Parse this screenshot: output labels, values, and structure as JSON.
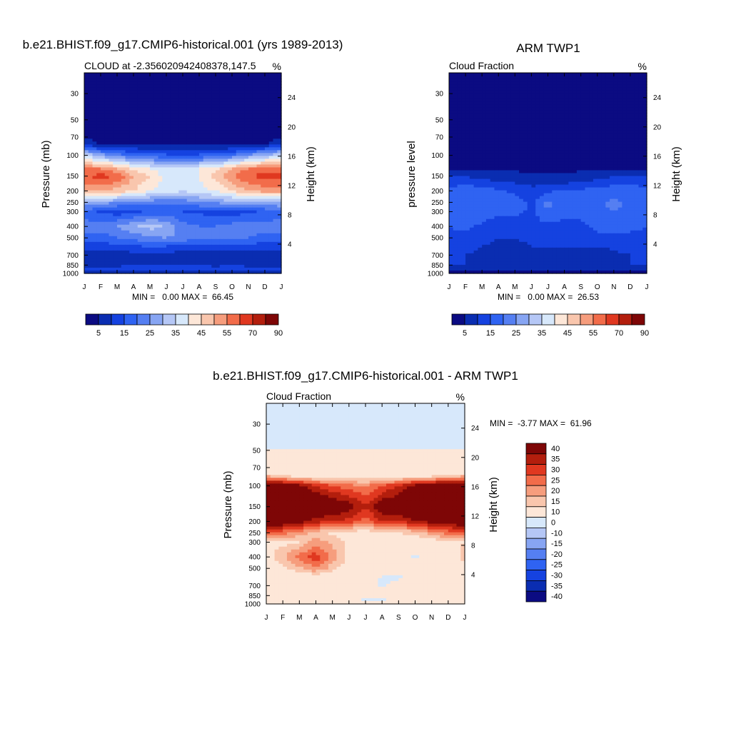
{
  "colorbar_palette": [
    "#0b0b82",
    "#0a2db1",
    "#1542e0",
    "#2f63f2",
    "#557ff2",
    "#87a5f3",
    "#b5c7f6",
    "#d7e8fb",
    "#fde7d8",
    "#f9c6ad",
    "#f69d7d",
    "#f26c4a",
    "#e03820",
    "#b31e0d",
    "#7e0606"
  ],
  "diff_palette": [
    "#0b0b82",
    "#0a2db1",
    "#1542e0",
    "#2f63f2",
    "#557ff2",
    "#87a5f3",
    "#b5c7f6",
    "#d7e8fb",
    "#fde7d8",
    "#f9c6ad",
    "#f69d7d",
    "#f26c4a",
    "#e03820",
    "#b31e0d",
    "#7e0606"
  ],
  "chart_data": [
    {
      "type": "heatmap",
      "title": "b.e21.BHIST.f09_g17.CMIP6-historical.001 (yrs 1989-2013)",
      "left_string": "CLOUD at -2.356020942408378,147.5",
      "right_string": "%",
      "xlabel": "",
      "ylabel": "Pressure (mb)",
      "ylabel_right": "Height (km)",
      "x_ticks": [
        "J",
        "F",
        "M",
        "A",
        "M",
        "J",
        "J",
        "A",
        "S",
        "O",
        "N",
        "D",
        "J"
      ],
      "y_ticks": [
        "30",
        "50",
        "70",
        "100",
        "150",
        "200",
        "250",
        "300",
        "400",
        "500",
        "700",
        "850",
        "1000"
      ],
      "y_ticks_right": [
        "24",
        "20",
        "16",
        "12",
        "8",
        "4"
      ],
      "y_scale": "log",
      "ylim": [
        1000,
        20
      ],
      "stats": "MIN =   0.00 MAX =  66.45",
      "colorbar_labels": [
        "5",
        "15",
        "25",
        "35",
        "45",
        "55",
        "70",
        "90"
      ],
      "colorbar_levels": [
        0,
        5,
        10,
        15,
        20,
        25,
        30,
        35,
        40,
        45,
        50,
        55,
        60,
        70,
        80,
        90
      ],
      "profile_by_month": [
        {
          "p": 30,
          "v": [
            0,
            0,
            0,
            0,
            0,
            0,
            0,
            0,
            0,
            0,
            0,
            0,
            0
          ]
        },
        {
          "p": 60,
          "v": [
            1,
            1,
            1,
            1,
            1,
            1,
            1,
            1,
            1,
            1,
            1,
            1,
            1
          ]
        },
        {
          "p": 80,
          "v": [
            8,
            4,
            3,
            3,
            3,
            3,
            3,
            3,
            3,
            3,
            3,
            4,
            8
          ]
        },
        {
          "p": 100,
          "v": [
            35,
            28,
            22,
            20,
            18,
            16,
            15,
            16,
            18,
            20,
            25,
            30,
            35
          ]
        },
        {
          "p": 130,
          "v": [
            55,
            55,
            50,
            43,
            40,
            36,
            38,
            40,
            43,
            50,
            55,
            58,
            56
          ]
        },
        {
          "p": 150,
          "v": [
            60,
            62,
            60,
            50,
            45,
            38,
            36,
            40,
            48,
            55,
            60,
            62,
            62
          ]
        },
        {
          "p": 200,
          "v": [
            50,
            50,
            48,
            45,
            40,
            38,
            35,
            38,
            40,
            45,
            50,
            52,
            52
          ]
        },
        {
          "p": 250,
          "v": [
            30,
            28,
            25,
            24,
            22,
            22,
            22,
            24,
            26,
            28,
            30,
            30,
            30
          ]
        },
        {
          "p": 300,
          "v": [
            18,
            14,
            12,
            14,
            16,
            16,
            15,
            14,
            12,
            12,
            14,
            16,
            18
          ]
        },
        {
          "p": 400,
          "v": [
            22,
            22,
            25,
            30,
            32,
            30,
            22,
            20,
            20,
            22,
            24,
            22,
            22
          ]
        },
        {
          "p": 500,
          "v": [
            18,
            18,
            20,
            22,
            24,
            25,
            24,
            20,
            22,
            22,
            20,
            18,
            18
          ]
        },
        {
          "p": 600,
          "v": [
            12,
            12,
            12,
            14,
            14,
            14,
            12,
            12,
            12,
            12,
            12,
            12,
            12
          ]
        },
        {
          "p": 700,
          "v": [
            6,
            6,
            6,
            8,
            8,
            8,
            8,
            6,
            5,
            6,
            8,
            6,
            6
          ]
        },
        {
          "p": 850,
          "v": [
            8,
            8,
            8,
            10,
            10,
            10,
            10,
            10,
            8,
            10,
            8,
            8,
            8
          ]
        },
        {
          "p": 925,
          "v": [
            14,
            14,
            14,
            14,
            14,
            14,
            14,
            14,
            14,
            14,
            14,
            14,
            14
          ]
        },
        {
          "p": 1000,
          "v": [
            2,
            2,
            2,
            2,
            2,
            2,
            2,
            2,
            2,
            2,
            2,
            2,
            2
          ]
        }
      ]
    },
    {
      "type": "heatmap",
      "title": "ARM TWP1",
      "left_string": "Cloud Fraction",
      "right_string": "%",
      "xlabel": "",
      "ylabel": "pressure level",
      "ylabel_right": "Height (km)",
      "x_ticks": [
        "J",
        "F",
        "M",
        "A",
        "M",
        "J",
        "J",
        "A",
        "S",
        "O",
        "N",
        "D",
        "J"
      ],
      "y_ticks": [
        "30",
        "50",
        "70",
        "100",
        "150",
        "200",
        "250",
        "300",
        "400",
        "500",
        "700",
        "850",
        "1000"
      ],
      "y_ticks_right": [
        "24",
        "20",
        "16",
        "12",
        "8",
        "4"
      ],
      "y_scale": "log",
      "ylim": [
        1000,
        20
      ],
      "stats": "MIN =   0.00 MAX =  26.53",
      "colorbar_labels": [
        "5",
        "15",
        "25",
        "35",
        "45",
        "55",
        "70",
        "90"
      ],
      "colorbar_levels": [
        0,
        5,
        10,
        15,
        20,
        25,
        30,
        35,
        40,
        45,
        50,
        55,
        60,
        70,
        80,
        90
      ],
      "profile_by_month": [
        {
          "p": 30,
          "v": [
            0,
            0,
            0,
            0,
            0,
            0,
            0,
            0,
            0,
            0,
            0,
            0,
            0
          ]
        },
        {
          "p": 100,
          "v": [
            1,
            1,
            1,
            1,
            1,
            1,
            1,
            1,
            1,
            1,
            1,
            1,
            1
          ]
        },
        {
          "p": 130,
          "v": [
            4,
            4,
            4,
            4,
            4,
            4,
            4,
            4,
            4,
            4,
            4,
            4,
            4
          ]
        },
        {
          "p": 160,
          "v": [
            12,
            12,
            10,
            9,
            8,
            7,
            6,
            7,
            8,
            10,
            12,
            12,
            12
          ]
        },
        {
          "p": 200,
          "v": [
            16,
            18,
            18,
            16,
            14,
            12,
            14,
            16,
            16,
            17,
            18,
            18,
            16
          ]
        },
        {
          "p": 260,
          "v": [
            18,
            20,
            20,
            18,
            18,
            14,
            22,
            17,
            17,
            18,
            22,
            18,
            18
          ]
        },
        {
          "p": 300,
          "v": [
            17,
            18,
            18,
            16,
            16,
            14,
            18,
            16,
            16,
            18,
            20,
            17,
            17
          ]
        },
        {
          "p": 400,
          "v": [
            15,
            16,
            14,
            12,
            12,
            14,
            14,
            14,
            14,
            16,
            16,
            16,
            15
          ]
        },
        {
          "p": 500,
          "v": [
            14,
            14,
            12,
            10,
            10,
            12,
            12,
            12,
            12,
            14,
            14,
            14,
            14
          ]
        },
        {
          "p": 600,
          "v": [
            11,
            12,
            10,
            8,
            7,
            10,
            10,
            10,
            10,
            10,
            11,
            11,
            11
          ]
        },
        {
          "p": 700,
          "v": [
            10,
            10,
            8,
            6,
            5,
            9,
            9,
            9,
            6,
            5,
            9,
            10,
            10
          ]
        },
        {
          "p": 850,
          "v": [
            10,
            10,
            6,
            6,
            5,
            8,
            8,
            8,
            7,
            6,
            8,
            10,
            10
          ]
        },
        {
          "p": 925,
          "v": [
            6,
            6,
            6,
            6,
            6,
            6,
            6,
            6,
            6,
            6,
            6,
            6,
            6
          ]
        },
        {
          "p": 1000,
          "v": [
            3,
            3,
            3,
            3,
            3,
            3,
            3,
            3,
            3,
            3,
            3,
            3,
            3
          ]
        }
      ]
    },
    {
      "type": "heatmap",
      "title": "b.e21.BHIST.f09_g17.CMIP6-historical.001 - ARM TWP1",
      "left_string": "Cloud Fraction",
      "right_string": "%",
      "xlabel": "",
      "ylabel": "Pressure (mb)",
      "ylabel_right": "Height (km)",
      "x_ticks": [
        "J",
        "F",
        "M",
        "A",
        "M",
        "J",
        "J",
        "A",
        "S",
        "O",
        "N",
        "D",
        "J"
      ],
      "y_ticks": [
        "30",
        "50",
        "70",
        "100",
        "150",
        "200",
        "250",
        "300",
        "400",
        "500",
        "700",
        "850",
        "1000"
      ],
      "y_ticks_right": [
        "24",
        "20",
        "16",
        "12",
        "8",
        "4"
      ],
      "y_scale": "log",
      "ylim": [
        1000,
        20
      ],
      "stats": "MIN =  -3.77 MAX =  61.96",
      "colorbar_labels": [
        "40",
        "35",
        "30",
        "25",
        "20",
        "15",
        "10",
        "0",
        "-10",
        "-15",
        "-20",
        "-25",
        "-30",
        "-35",
        "-40"
      ],
      "colorbar_levels": [
        -45,
        -40,
        -35,
        -30,
        -25,
        -20,
        -15,
        -10,
        0,
        10,
        15,
        20,
        25,
        30,
        35,
        40,
        45
      ],
      "profile_by_month": [
        {
          "p": 30,
          "v": [
            -1,
            -1,
            -1,
            -1,
            -1,
            -1,
            -1,
            -1,
            -1,
            -1,
            -1,
            -1,
            -1
          ]
        },
        {
          "p": 48,
          "v": [
            -1,
            -1,
            -1,
            -1,
            -1,
            -1,
            -1,
            -1,
            -1,
            -1,
            -1,
            -1,
            -1
          ]
        },
        {
          "p": 52,
          "v": [
            1,
            1,
            1,
            1,
            1,
            1,
            1,
            1,
            1,
            1,
            1,
            1,
            1
          ]
        },
        {
          "p": 80,
          "v": [
            10,
            5,
            3,
            3,
            3,
            3,
            3,
            3,
            3,
            3,
            3,
            5,
            10
          ]
        },
        {
          "p": 100,
          "v": [
            45,
            42,
            38,
            30,
            25,
            22,
            20,
            25,
            30,
            38,
            42,
            45,
            45
          ]
        },
        {
          "p": 150,
          "v": [
            55,
            55,
            52,
            45,
            42,
            38,
            30,
            40,
            42,
            50,
            55,
            58,
            55
          ]
        },
        {
          "p": 200,
          "v": [
            45,
            42,
            38,
            32,
            30,
            28,
            22,
            30,
            30,
            34,
            38,
            40,
            42
          ]
        },
        {
          "p": 250,
          "v": [
            24,
            22,
            18,
            12,
            8,
            7,
            7,
            8,
            10,
            12,
            18,
            22,
            24
          ]
        },
        {
          "p": 300,
          "v": [
            10,
            8,
            10,
            18,
            14,
            9,
            6,
            6,
            5,
            5,
            6,
            8,
            10
          ]
        },
        {
          "p": 400,
          "v": [
            7,
            14,
            22,
            28,
            18,
            8,
            5,
            4,
            3,
            -1,
            3,
            6,
            12
          ]
        },
        {
          "p": 500,
          "v": [
            5,
            8,
            14,
            20,
            12,
            6,
            4,
            5,
            4,
            3,
            4,
            6,
            8
          ]
        },
        {
          "p": 600,
          "v": [
            4,
            4,
            4,
            4,
            4,
            3,
            3,
            -1,
            -1,
            3,
            3,
            3,
            4
          ]
        },
        {
          "p": 700,
          "v": [
            3,
            3,
            3,
            3,
            3,
            3,
            3,
            -1,
            3,
            3,
            3,
            3,
            3
          ]
        },
        {
          "p": 850,
          "v": [
            3,
            3,
            3,
            3,
            3,
            3,
            3,
            3,
            3,
            3,
            3,
            3,
            3
          ]
        },
        {
          "p": 925,
          "v": [
            2,
            2,
            2,
            2,
            2,
            2,
            -1,
            -1,
            2,
            2,
            2,
            2,
            2
          ]
        },
        {
          "p": 1000,
          "v": [
            1,
            1,
            1,
            1,
            1,
            1,
            1,
            1,
            1,
            1,
            1,
            1,
            1
          ]
        }
      ]
    }
  ]
}
